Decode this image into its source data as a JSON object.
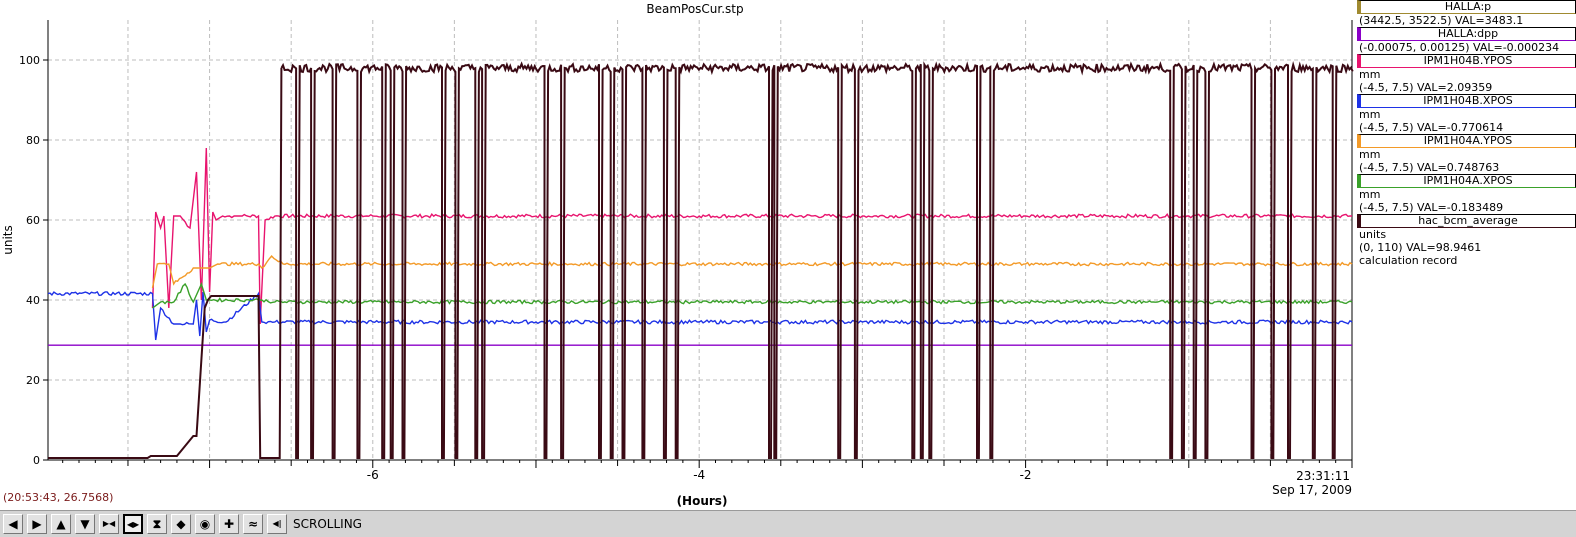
{
  "chart_data": {
    "type": "line",
    "title": "BeamPosCur.stp",
    "xlabel": "(Hours)",
    "ylabel": "units",
    "xlim": [
      -7.99,
      0
    ],
    "ylim": [
      0,
      110
    ],
    "yticks": [
      0,
      20,
      40,
      60,
      80,
      100
    ],
    "xticks": [
      -6,
      -4,
      -2
    ],
    "grid": true,
    "end_time_label": "23:31:11",
    "end_date_label": "Sep 17, 2009",
    "series": [
      {
        "name": "HALLA:dpp",
        "color": "#8b00c8",
        "x": [
          -7.99,
          0
        ],
        "y": [
          28.7,
          28.7
        ]
      },
      {
        "name": "IPM1H04B.YPOS",
        "color": "#e8146e",
        "x": [
          -7.35,
          -7.33,
          -7.3,
          -7.28,
          -7.25,
          -7.22,
          -7.18,
          -7.12,
          -7.08,
          -7.05,
          -7.02,
          -7.0,
          -6.98,
          -6.96,
          -6.92,
          -6.85,
          -6.8,
          -6.7,
          -6.69,
          -6.66,
          -6.6,
          -6.0,
          -5.0,
          -4.0,
          -3.0,
          -2.0,
          -1.0,
          -0.5,
          0
        ],
        "y": [
          38,
          62,
          58,
          61,
          38,
          61,
          61,
          58,
          72,
          40,
          78,
          42,
          62,
          60,
          61,
          61,
          61,
          61,
          34,
          60,
          61,
          61,
          61,
          61,
          61,
          61,
          61,
          61,
          61
        ]
      },
      {
        "name": "IPM1H04B.XPOS",
        "color": "#1e32e6",
        "x": [
          -7.99,
          -7.35,
          -7.33,
          -7.3,
          -7.22,
          -7.18,
          -7.1,
          -7.08,
          -7.06,
          -7.04,
          -7.02,
          -7.0,
          -6.9,
          -6.7,
          -6.68,
          -6.6,
          -6.0,
          -5.0,
          -4.0,
          -3.0,
          -2.0,
          -1.0,
          0
        ],
        "y": [
          41.6,
          41.6,
          30,
          38,
          34,
          34,
          34,
          40,
          31,
          42,
          32,
          35,
          34.5,
          41.6,
          34.5,
          34.5,
          34.5,
          34.5,
          34.5,
          34.5,
          34.5,
          34.5,
          34.5
        ]
      },
      {
        "name": "IPM1H04A.YPOS",
        "color": "#f39a28",
        "x": [
          -7.35,
          -7.32,
          -7.25,
          -7.22,
          -7.1,
          -7.05,
          -7.0,
          -6.95,
          -6.7,
          -6.68,
          -6.62,
          -6.55,
          -6.0,
          -5.0,
          -4.0,
          -3.0,
          -2.0,
          -1.0,
          0
        ],
        "y": [
          43,
          49,
          49,
          44,
          48,
          48,
          48,
          49,
          49,
          48,
          51,
          49,
          49,
          49,
          49,
          49,
          49,
          49,
          49
        ]
      },
      {
        "name": "IPM1H04A.XPOS",
        "color": "#3aa12a",
        "x": [
          -7.35,
          -7.3,
          -7.22,
          -7.15,
          -7.1,
          -7.05,
          -7.02,
          -7.0,
          -6.7,
          -6.68,
          -6.6,
          -6.0,
          -5.0,
          -4.0,
          -3.0,
          -2.0,
          -1.0,
          0
        ],
        "y": [
          38,
          39.5,
          39.5,
          44,
          39.5,
          44,
          40,
          40,
          40,
          40,
          39.5,
          39.5,
          39.5,
          39.5,
          39.5,
          39.5,
          39.5,
          39.5
        ]
      },
      {
        "name": "hac_bcm_average",
        "color": "#3a0a14",
        "x": [
          -7.99,
          -7.38,
          -7.36,
          -7.2,
          -7.1,
          -7.08,
          -7.03,
          -7.01,
          -6.99,
          -6.97,
          -6.7,
          -6.69,
          -6.57,
          -6.56
        ],
        "y": [
          0.5,
          0.5,
          1,
          1,
          6,
          6,
          38,
          40,
          41,
          41,
          41,
          0.5,
          0.5,
          98
        ]
      }
    ],
    "beam_baseline": 98,
    "beam_dips": [
      -6.48,
      -6.38,
      -6.25,
      -6.1,
      -5.95,
      -5.9,
      -5.82,
      -5.58,
      -5.5,
      -5.38,
      -5.34,
      -4.95,
      -4.85,
      -4.62,
      -4.55,
      -4.48,
      -4.35,
      -4.22,
      -4.15,
      -3.58,
      -3.55,
      -3.15,
      -3.05,
      -2.7,
      -2.65,
      -2.6,
      -2.3,
      -2.22,
      -1.12,
      -1.05,
      -0.98,
      -0.9,
      -0.62,
      -0.5,
      -0.4,
      -0.25,
      -0.12
    ]
  },
  "legend": [
    {
      "name": "HALLA:p",
      "color": "#a08a30",
      "units": "",
      "range": "(3442.5, 3522.5)",
      "value": "VAL=3483.1"
    },
    {
      "name": "HALLA:dpp",
      "color": "#8b00c8",
      "units": "",
      "range": "(-0.00075, 0.00125)",
      "value": "VAL=-0.000234"
    },
    {
      "name": "IPM1H04B.YPOS",
      "color": "#e8146e",
      "units": "mm",
      "range": "(-4.5, 7.5)",
      "value": "VAL=2.09359"
    },
    {
      "name": "IPM1H04B.XPOS",
      "color": "#1e32e6",
      "units": "mm",
      "range": "(-4.5, 7.5)",
      "value": "VAL=-0.770614"
    },
    {
      "name": "IPM1H04A.YPOS",
      "color": "#f39a28",
      "units": "mm",
      "range": "(-4.5, 7.5)",
      "value": "VAL=0.748763"
    },
    {
      "name": "IPM1H04A.XPOS",
      "color": "#3aa12a",
      "units": "mm",
      "range": "(-4.5, 7.5)",
      "value": "VAL=-0.183489"
    },
    {
      "name": "hac_bcm_average",
      "color": "#3a0a14",
      "units": "units",
      "range": "(0, 110)",
      "value": "VAL=98.9461",
      "extra": "calculation record"
    }
  ],
  "cursor_readout": "(20:53:43, 26.7568)",
  "toolbar": {
    "buttons": [
      {
        "name": "pan-left-icon",
        "glyph": "◀"
      },
      {
        "name": "pan-right-icon",
        "glyph": "▶"
      },
      {
        "name": "pan-up-icon",
        "glyph": "▲"
      },
      {
        "name": "pan-down-icon",
        "glyph": "▼"
      },
      {
        "name": "zoom-in-x-icon",
        "glyph": "▶◀"
      },
      {
        "name": "zoom-out-x-icon",
        "glyph": "◀▶"
      },
      {
        "name": "zoom-in-y-icon",
        "glyph": "⧗"
      },
      {
        "name": "zoom-out-y-icon",
        "glyph": "◆"
      },
      {
        "name": "reset-icon",
        "glyph": "◉"
      },
      {
        "name": "add-icon",
        "glyph": "✚"
      },
      {
        "name": "autoscale-icon",
        "glyph": "≈"
      },
      {
        "name": "scroll-icon",
        "glyph": "◀|"
      }
    ],
    "mode_label": "SCROLLING"
  }
}
